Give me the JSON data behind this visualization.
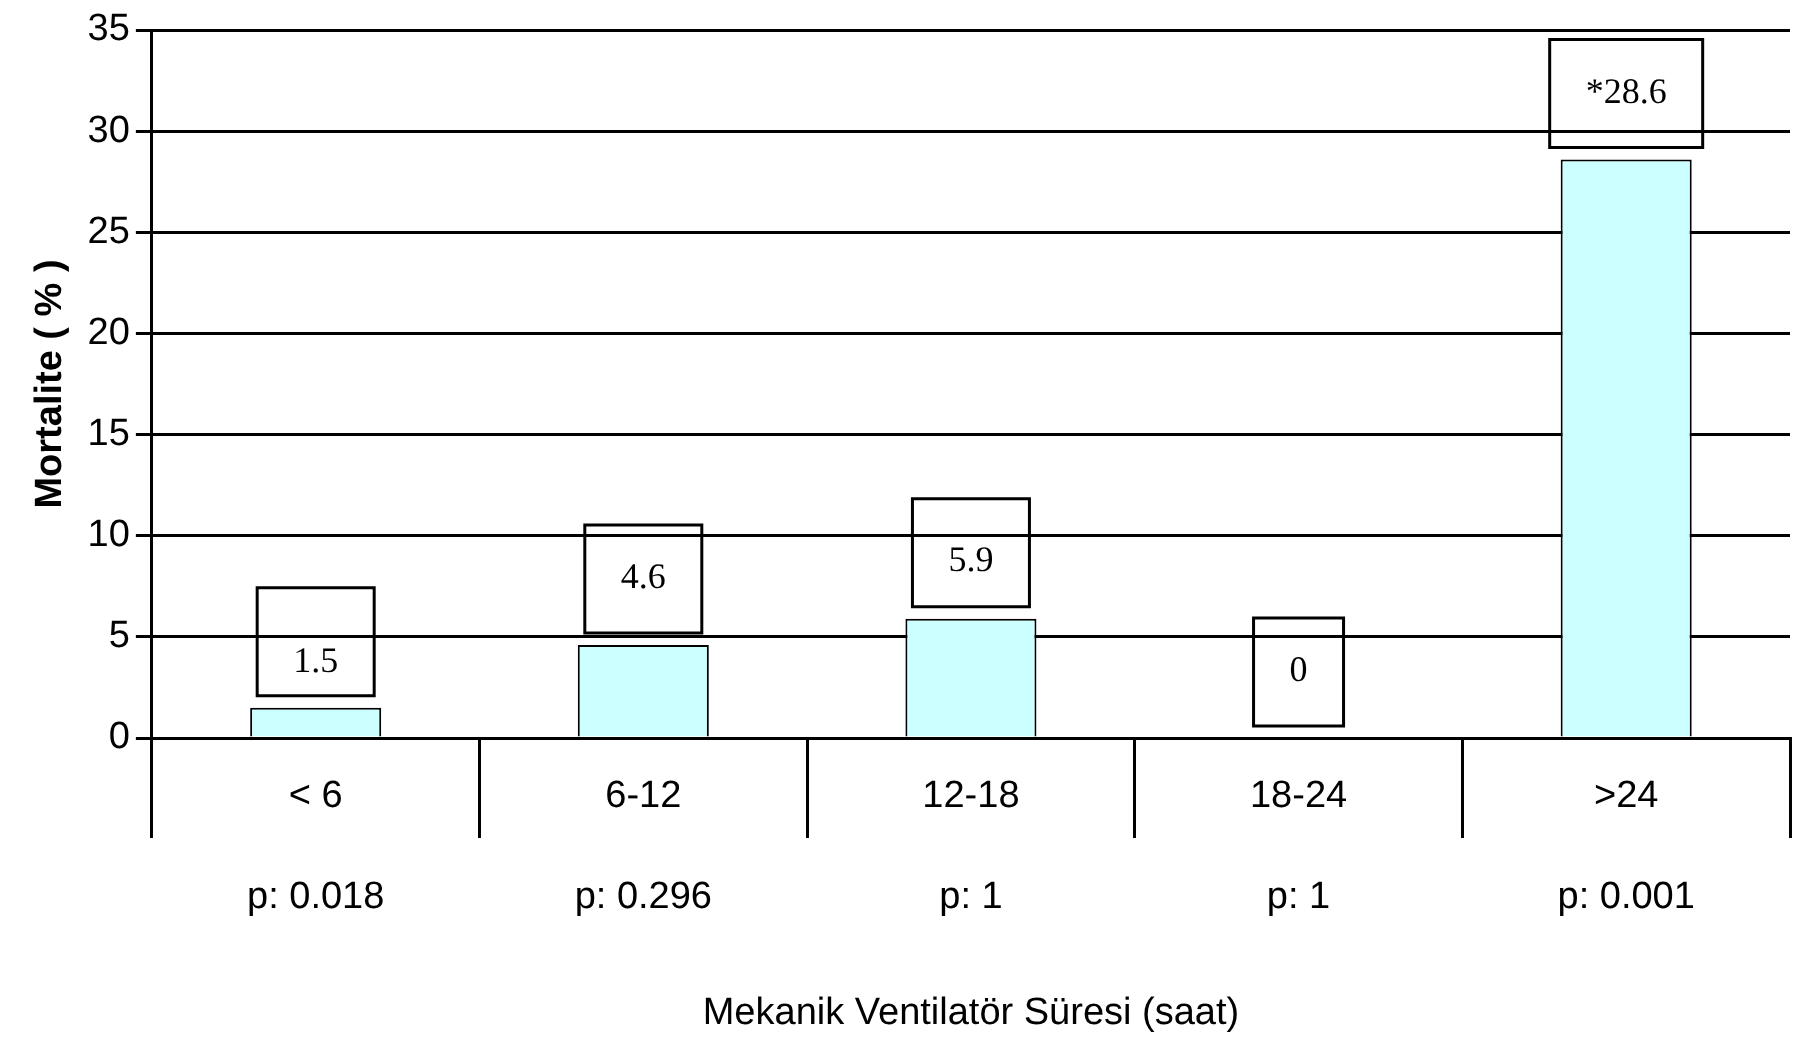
{
  "chart_data": {
    "type": "bar",
    "xlabel": "Mekanik Ventilatör Süresi (saat)",
    "ylabel": "Mortalite ( % )",
    "categories": [
      "< 6",
      "6-12",
      "12-18",
      "18-24",
      ">24"
    ],
    "values": [
      1.5,
      4.6,
      5.9,
      0,
      28.6
    ],
    "value_labels": [
      "1.5",
      "4.6",
      "5.9",
      "0",
      "*28.6"
    ],
    "color": "#ccffff",
    "ylim": [
      0,
      35
    ],
    "yticks": [
      0,
      5,
      10,
      15,
      20,
      25,
      30,
      35
    ],
    "grid": "y",
    "legend": false,
    "annotations": [
      "p: 0.018",
      "p: 0.296",
      "p: 1",
      "p: 1",
      "p: 0.001"
    ]
  }
}
